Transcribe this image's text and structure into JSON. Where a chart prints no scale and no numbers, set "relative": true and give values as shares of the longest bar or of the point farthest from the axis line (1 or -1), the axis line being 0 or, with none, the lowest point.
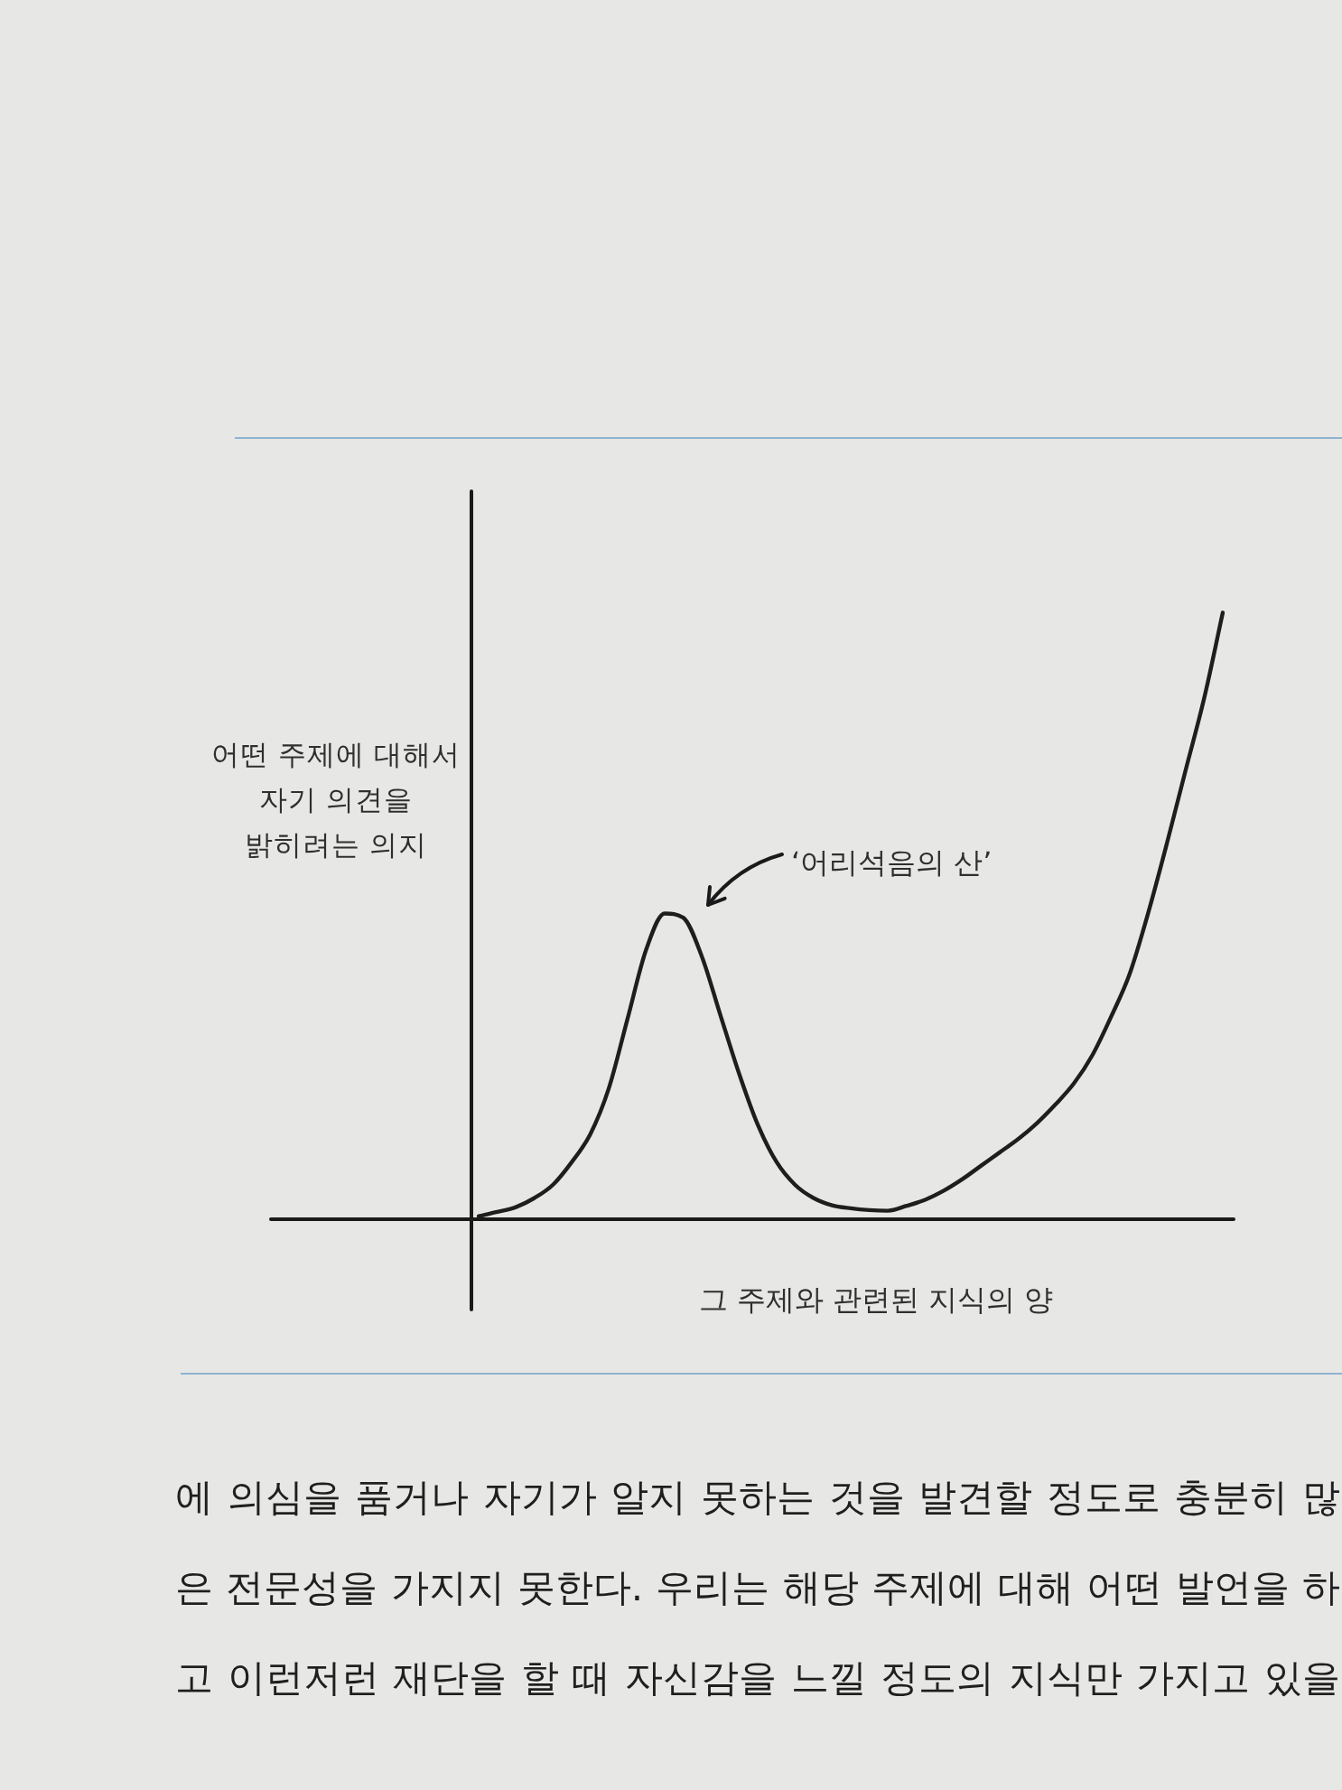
{
  "chart_data": {
    "type": "line",
    "relative": true,
    "xlabel": "그 주제와 관련된 지식의 양",
    "ylabel": "어떤 주제에 대해서 자기 의견을 밝히려는 의지",
    "categories": [
      null,
      null,
      null,
      null,
      null,
      null,
      null,
      null,
      null,
      null,
      null,
      null,
      null,
      null,
      null,
      null,
      null,
      null,
      null,
      null,
      null,
      null,
      null,
      null,
      null,
      null,
      null,
      null,
      null,
      null,
      null,
      null,
      null,
      null,
      null,
      null,
      null,
      null,
      null,
      null,
      null
    ],
    "values": [
      0.005,
      0.012,
      0.02,
      0.035,
      0.057,
      0.094,
      0.14,
      0.216,
      0.33,
      0.444,
      0.504,
      0.497,
      0.433,
      0.336,
      0.24,
      0.156,
      0.095,
      0.057,
      0.035,
      0.023,
      0.018,
      0.015,
      0.014,
      0.022,
      0.032,
      0.047,
      0.066,
      0.088,
      0.11,
      0.132,
      0.158,
      0.189,
      0.224,
      0.271,
      0.334,
      0.405,
      0.506,
      0.62,
      0.74,
      0.859,
      1
    ],
    "color": "#1e1e1e",
    "annotations": [
      "‘어리석음의 산’",
      "에 의심을 품거나 자기가 알지 못하는 것을 발견할 정도로 충분히 많은 전문성을 가지지 못한다. 우리는 해당 주제에 대해 어떤 발언을 하고 이런저런 재단을 할 때 자신감을 느낄 정도의 지식만 가지고 있을"
    ]
  }
}
